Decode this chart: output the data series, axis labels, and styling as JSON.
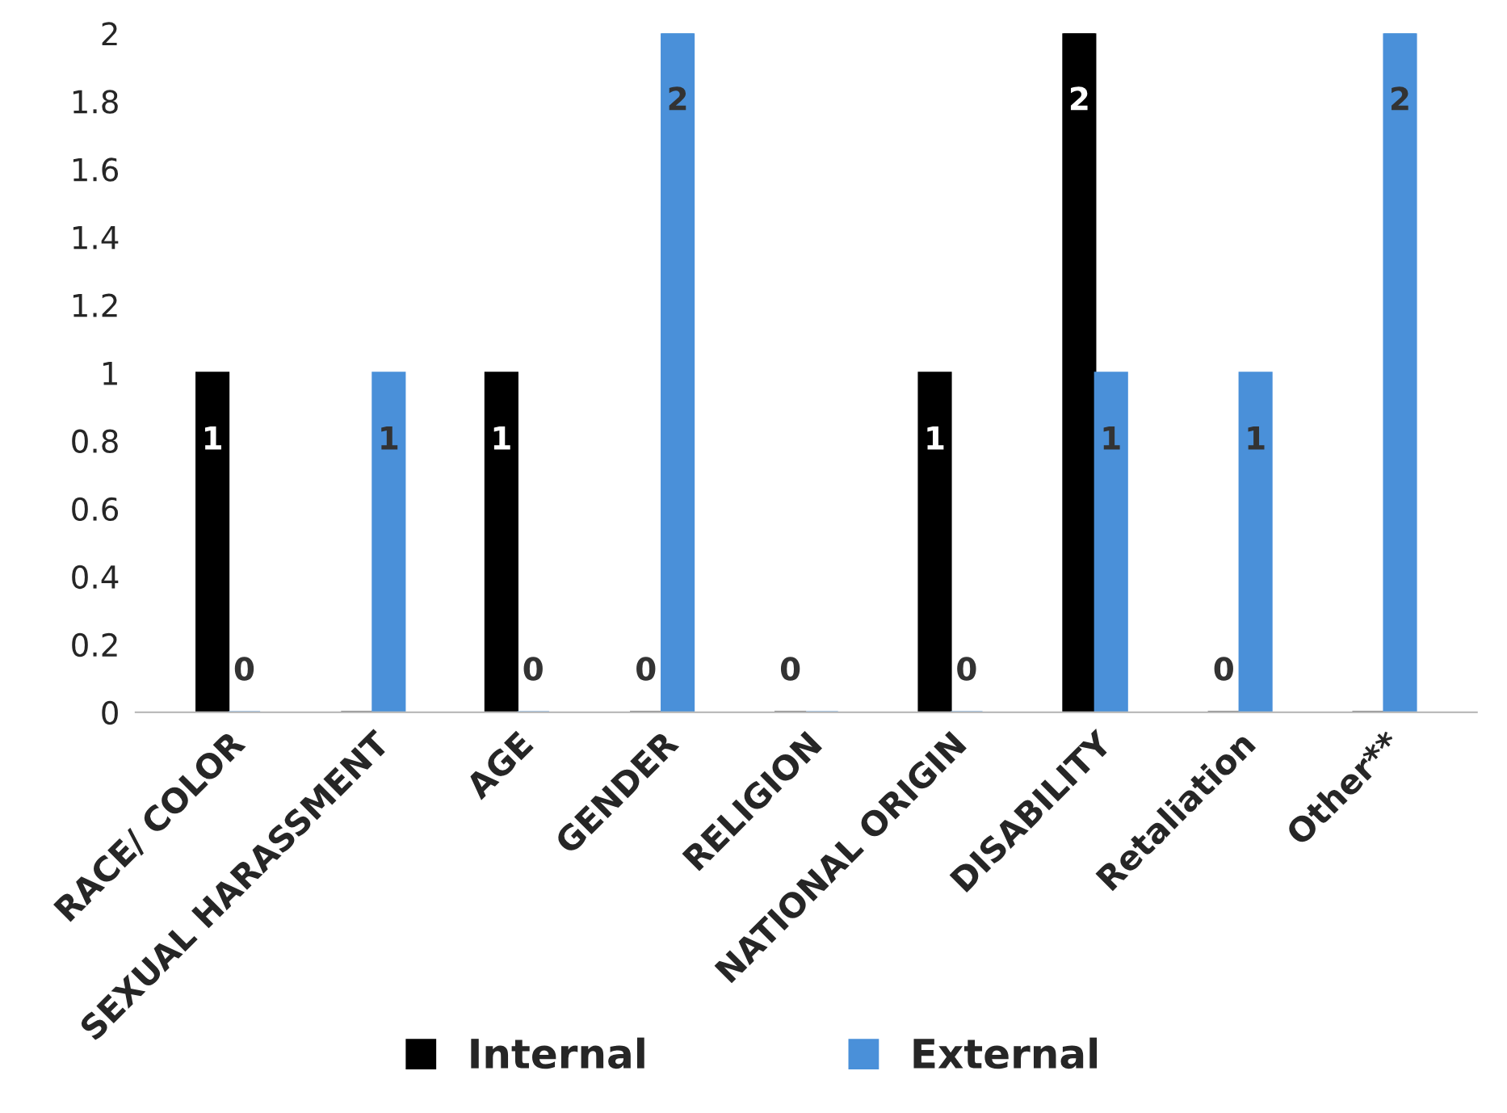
{
  "chart_data": {
    "type": "bar",
    "categories": [
      "RACE/ COLOR",
      "SEXUAL HARASSMENT",
      "AGE",
      "GENDER",
      "RELIGION",
      "NATIONAL ORIGIN",
      "DISABILITY",
      "Retaliation",
      "Other**"
    ],
    "series": [
      {
        "name": "Internal",
        "color": "#000000",
        "values": [
          1,
          0,
          1,
          0,
          0,
          1,
          2,
          0,
          0
        ],
        "value_labels": [
          "1",
          null,
          "1",
          "0",
          "0",
          "1",
          "2",
          "0",
          null
        ]
      },
      {
        "name": "External",
        "color": "#4a90d9",
        "values": [
          0,
          1,
          0,
          2,
          0,
          0,
          1,
          1,
          2
        ],
        "value_labels": [
          "0",
          "1",
          "0",
          "2",
          null,
          "0",
          "1",
          "1",
          "2"
        ]
      }
    ],
    "ylim": [
      0,
      2
    ],
    "yticks": [
      0,
      0.2,
      0.4,
      0.6,
      0.8,
      1,
      1.2,
      1.4,
      1.6,
      1.8,
      2
    ],
    "legend": "bottom",
    "grid": false
  }
}
